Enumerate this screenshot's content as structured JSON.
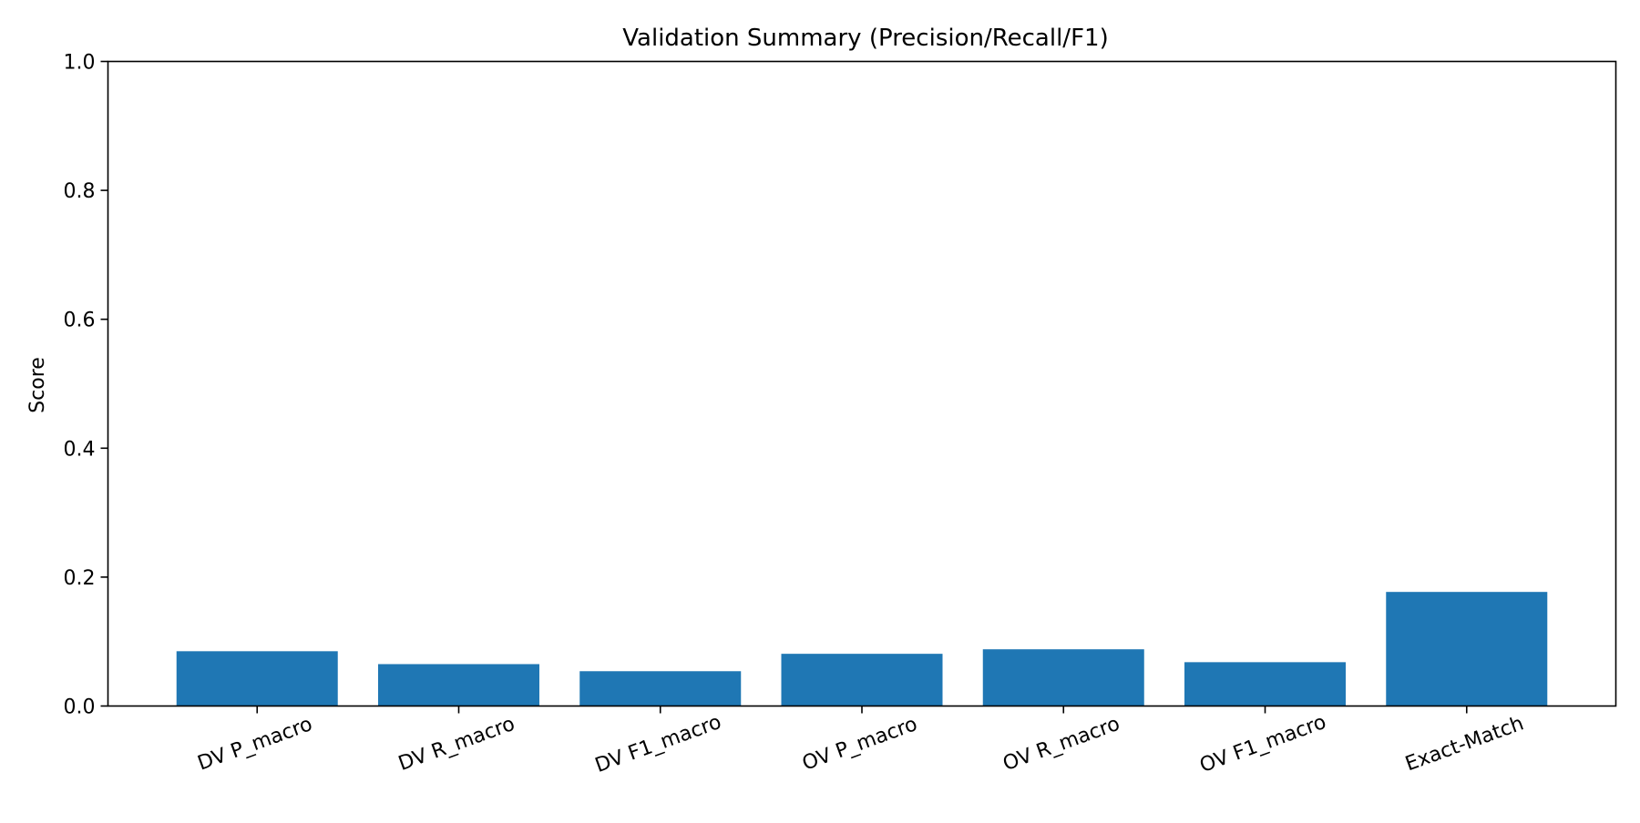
{
  "chart_data": {
    "type": "bar",
    "title": "Validation Summary (Precision/Recall/F1)",
    "xlabel": "",
    "ylabel": "Score",
    "categories": [
      "DV P_macro",
      "DV R_macro",
      "DV F1_macro",
      "OV P_macro",
      "OV R_macro",
      "OV F1_macro",
      "Exact-Match"
    ],
    "values": [
      0.085,
      0.065,
      0.054,
      0.081,
      0.088,
      0.068,
      0.177
    ],
    "ylim": [
      0,
      1.0
    ],
    "yticks": [
      "0.0",
      "0.2",
      "0.4",
      "0.6",
      "0.8",
      "1.0"
    ],
    "bar_color": "#1f77b4",
    "grid": false,
    "legend": "none"
  }
}
